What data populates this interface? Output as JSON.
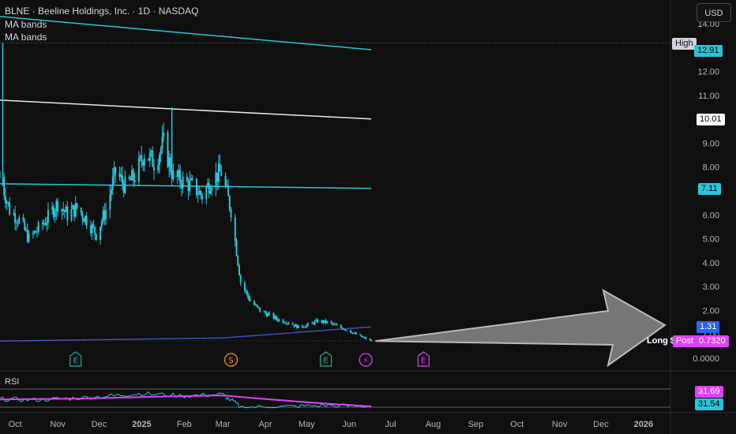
{
  "header": {
    "title": "BLNE · Beeline Holdings, Inc. · 1D · NASDAQ",
    "indicator1": "MA bands",
    "indicator2": "MA bands",
    "currency_button": "USD"
  },
  "rsi": {
    "label": "RSI",
    "value_upper": "31.69",
    "value_lower": "31.54"
  },
  "price_tags": {
    "high_label": "High",
    "high_value": "12.91",
    "ma_upper": "10.01",
    "ma_mid": "7.11",
    "ma_low": "1.31",
    "post_label": "Post",
    "post_value": "0.7320",
    "long_label": "Long $0"
  },
  "event_markers": [
    {
      "letter": "E",
      "type": "earnings",
      "date": "2024-11-14"
    },
    {
      "letter": "S",
      "type": "split",
      "date": "2025-03-07"
    },
    {
      "letter": "E",
      "type": "earnings",
      "date": "2025-05-15"
    },
    {
      "letter": "⚡",
      "type": "news",
      "date": "2025-06-13"
    },
    {
      "letter": "E",
      "type": "earnings-upcoming",
      "date": "2025-07-25"
    }
  ],
  "colors": {
    "background": "#0f0f0f",
    "candles": "#26c6da",
    "ma_band_cyan": "#26c6da",
    "ma_band_white": "#e8e8e8",
    "ma_band_blue": "#3f51b5",
    "rsi_line": "#26c6da",
    "rsi_ma": "#e040fb",
    "post_magenta": "#e040fb"
  },
  "chart_data": {
    "type": "candlestick",
    "symbol": "BLNE",
    "interval": "1D",
    "x_ticks": [
      "Oct",
      "Nov",
      "Dec",
      "2025",
      "Feb",
      "Mar",
      "Apr",
      "May",
      "Jun",
      "Jul",
      "Aug",
      "Sep",
      "Oct",
      "Nov",
      "Dec",
      "2026"
    ],
    "y_ticks": [
      "14.00",
      "13.00",
      "12.00",
      "11.00",
      "10.00",
      "9.00",
      "8.00",
      "7.00",
      "6.00",
      "5.00",
      "4.00",
      "3.00",
      "2.00",
      "1.00",
      "0.0000"
    ],
    "y_range": [
      0,
      14.5
    ],
    "x_range": [
      "2024-09-20",
      "2026-01-20"
    ],
    "price_path": [
      [
        "2024-09-20",
        7.6
      ],
      [
        "2024-09-27",
        6.2
      ],
      [
        "2024-10-04",
        5.8
      ],
      [
        "2024-10-11",
        5.0
      ],
      [
        "2024-10-18",
        5.4
      ],
      [
        "2024-10-25",
        5.9
      ],
      [
        "2024-11-01",
        6.5
      ],
      [
        "2024-11-08",
        6.0
      ],
      [
        "2024-11-15",
        6.3
      ],
      [
        "2024-11-22",
        5.8
      ],
      [
        "2024-11-29",
        5.2
      ],
      [
        "2024-12-06",
        6.2
      ],
      [
        "2024-12-13",
        7.8
      ],
      [
        "2024-12-20",
        7.2
      ],
      [
        "2024-12-27",
        7.6
      ],
      [
        "2025-01-03",
        8.6
      ],
      [
        "2025-01-10",
        8.2
      ],
      [
        "2025-01-17",
        9.0
      ],
      [
        "2025-01-24",
        7.6
      ],
      [
        "2025-01-31",
        7.4
      ],
      [
        "2025-02-07",
        7.2
      ],
      [
        "2025-02-14",
        6.8
      ],
      [
        "2025-02-21",
        7.5
      ],
      [
        "2025-02-28",
        7.8
      ],
      [
        "2025-03-07",
        6.2
      ],
      [
        "2025-03-14",
        3.2
      ],
      [
        "2025-03-21",
        2.4
      ],
      [
        "2025-03-28",
        2.0
      ],
      [
        "2025-04-04",
        1.8
      ],
      [
        "2025-04-11",
        1.6
      ],
      [
        "2025-04-18",
        1.5
      ],
      [
        "2025-04-25",
        1.3
      ],
      [
        "2025-05-02",
        1.4
      ],
      [
        "2025-05-09",
        1.55
      ],
      [
        "2025-05-16",
        1.5
      ],
      [
        "2025-05-23",
        1.35
      ],
      [
        "2025-05-30",
        1.2
      ],
      [
        "2025-06-06",
        1.0
      ],
      [
        "2025-06-13",
        0.82
      ],
      [
        "2025-06-17",
        0.73
      ]
    ],
    "spikes": [
      {
        "date": "2024-09-22",
        "high": 13.2
      },
      {
        "date": "2025-01-23",
        "high": 10.5
      }
    ],
    "ma_bands": [
      {
        "name": "MA bands",
        "points": [
          [
            "2024-09-20",
            14.3
          ],
          [
            "2025-06-17",
            12.91
          ]
        ]
      },
      {
        "name": "MA bands",
        "points": [
          [
            "2024-09-20",
            10.8
          ],
          [
            "2025-06-17",
            10.01
          ]
        ]
      },
      {
        "name": "MA bands",
        "points": [
          [
            "2024-09-20",
            7.3
          ],
          [
            "2025-06-17",
            7.11
          ]
        ]
      },
      {
        "name": "MA bands",
        "points": [
          [
            "2024-09-20",
            0.72
          ],
          [
            "2025-03-01",
            0.85
          ],
          [
            "2025-06-17",
            1.31
          ]
        ]
      }
    ],
    "rsi_path": [
      [
        "2024-09-20",
        48
      ],
      [
        "2024-10-15",
        46
      ],
      [
        "2024-11-10",
        49
      ],
      [
        "2024-12-10",
        55
      ],
      [
        "2025-01-01",
        60
      ],
      [
        "2025-02-01",
        55
      ],
      [
        "2025-03-01",
        58
      ],
      [
        "2025-03-15",
        30
      ],
      [
        "2025-04-15",
        31
      ],
      [
        "2025-05-15",
        34
      ],
      [
        "2025-06-17",
        31.54
      ]
    ],
    "rsi_ma_path": [
      [
        "2024-09-20",
        47
      ],
      [
        "2024-11-20",
        49
      ],
      [
        "2025-01-10",
        53
      ],
      [
        "2025-03-01",
        56
      ],
      [
        "2025-04-01",
        48
      ],
      [
        "2025-05-10",
        39
      ],
      [
        "2025-06-17",
        31.69
      ]
    ]
  }
}
